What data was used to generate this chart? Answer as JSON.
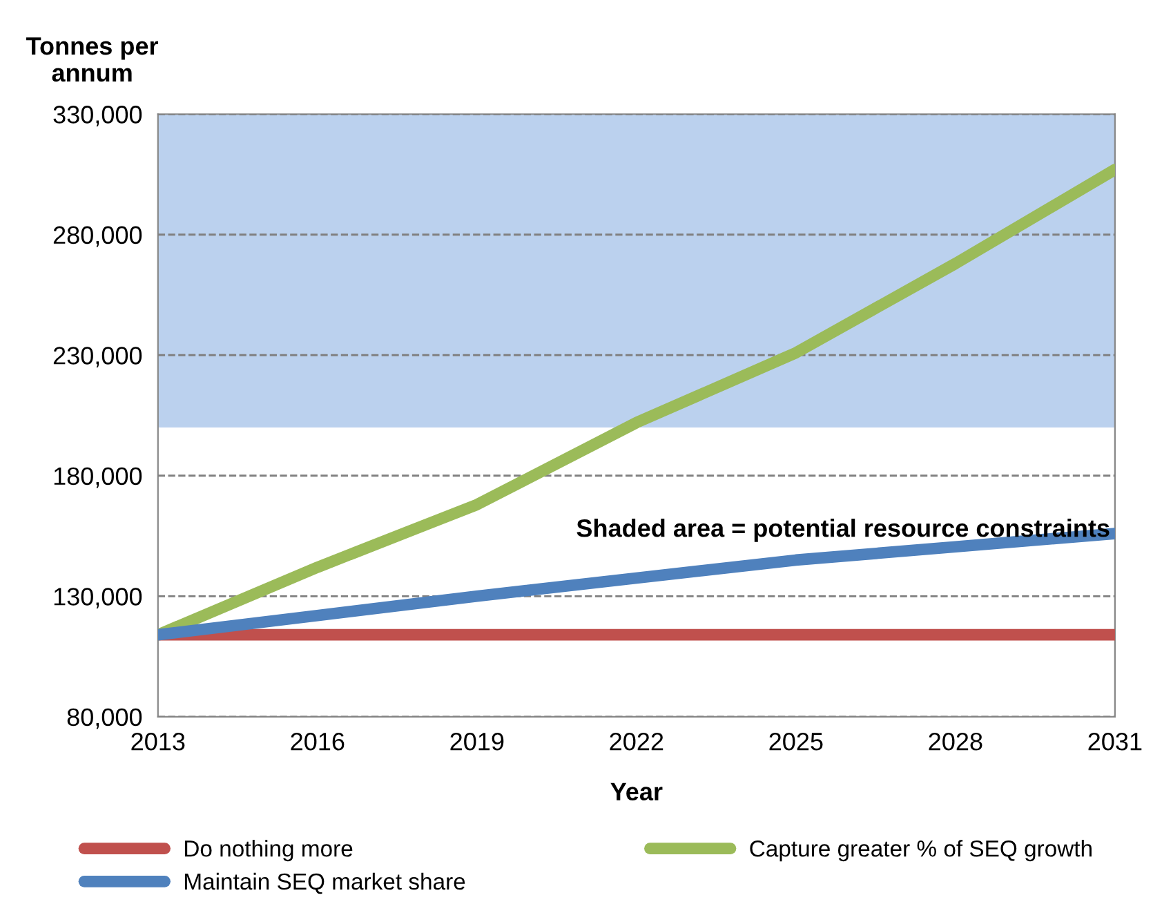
{
  "chart_data": {
    "type": "line",
    "xlabel": "Year",
    "ylabel": "Tonnes per annum",
    "x": [
      2013,
      2016,
      2019,
      2022,
      2025,
      2028,
      2031
    ],
    "series": [
      {
        "name": "Do nothing more",
        "color": "#c0504d",
        "values": [
          114000,
          114000,
          114000,
          114000,
          114000,
          114000,
          114000
        ]
      },
      {
        "name": "Capture greater % of SEQ growth",
        "color": "#9bbb59",
        "values": [
          114000,
          142000,
          168000,
          202000,
          231000,
          268000,
          307000
        ]
      },
      {
        "name": "Maintain SEQ market share",
        "color": "#4f81bd",
        "values": [
          114000,
          122000,
          130000,
          137500,
          145000,
          150500,
          156000
        ]
      }
    ],
    "xlim": [
      2013,
      2031
    ],
    "xticks": [
      2013,
      2016,
      2019,
      2022,
      2025,
      2028,
      2031
    ],
    "ylim": [
      80000,
      330000
    ],
    "yticks": [
      {
        "value": 80000,
        "label": "80,000"
      },
      {
        "value": 130000,
        "label": "130,000"
      },
      {
        "value": 180000,
        "label": "180,000"
      },
      {
        "value": 230000,
        "label": "230,000"
      },
      {
        "value": 280000,
        "label": "280,000"
      },
      {
        "value": 330000,
        "label": "330,000"
      }
    ],
    "bands": [
      {
        "axis": "y",
        "from": 200000,
        "to": 330000,
        "color": "#8db3e2"
      }
    ],
    "annotations": [
      "Shaded area = potential resource constraints"
    ],
    "grid": "y",
    "legend": "bottom",
    "marker": "none",
    "line_style": "solid"
  }
}
